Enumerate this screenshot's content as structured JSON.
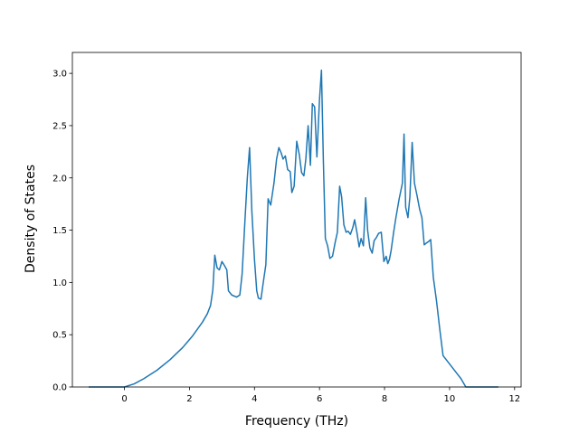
{
  "chart_data": {
    "type": "line",
    "title": "",
    "xlabel": "Frequency (THz)",
    "ylabel": "Density of States",
    "xlim": [
      -1.6,
      12.2
    ],
    "ylim": [
      0.0,
      3.2
    ],
    "xticks": [
      0,
      2,
      4,
      6,
      8,
      10,
      12
    ],
    "xtick_labels": [
      "0",
      "2",
      "4",
      "6",
      "8",
      "10",
      "12"
    ],
    "yticks": [
      0.0,
      0.5,
      1.0,
      1.5,
      2.0,
      2.5,
      3.0
    ],
    "ytick_labels": [
      "0.0",
      "0.5",
      "1.0",
      "1.5",
      "2.0",
      "2.5",
      "3.0"
    ],
    "grid": false,
    "line_color": "#1f77b4",
    "series": [
      {
        "x": [
          -1.1,
          -0.5,
          0.0,
          0.3,
          0.6,
          1.0,
          1.4,
          1.8,
          2.1,
          2.4,
          2.55,
          2.65,
          2.72,
          2.78,
          2.85,
          2.92,
          3.0,
          3.08,
          3.15,
          3.2,
          3.3,
          3.45,
          3.55,
          3.62,
          3.7,
          3.78,
          3.85,
          3.92,
          4.0,
          4.07,
          4.12,
          4.2,
          4.28,
          4.35,
          4.42,
          4.5,
          4.6,
          4.68,
          4.75,
          4.82,
          4.88,
          4.95,
          5.02,
          5.1,
          5.15,
          5.22,
          5.3,
          5.38,
          5.45,
          5.52,
          5.58,
          5.65,
          5.72,
          5.78,
          5.85,
          5.92,
          6.0,
          6.06,
          6.12,
          6.18,
          6.25,
          6.32,
          6.4,
          6.48,
          6.55,
          6.62,
          6.68,
          6.75,
          6.82,
          6.88,
          6.95,
          7.02,
          7.08,
          7.15,
          7.22,
          7.28,
          7.35,
          7.42,
          7.48,
          7.55,
          7.62,
          7.68,
          7.75,
          7.82,
          7.9,
          7.98,
          8.05,
          8.1,
          8.15,
          8.2,
          8.28,
          8.35,
          8.45,
          8.55,
          8.6,
          8.65,
          8.72,
          8.78,
          8.85,
          8.92,
          9.0,
          9.08,
          9.15,
          9.22,
          9.3,
          9.35,
          9.42,
          9.5,
          9.6,
          9.7,
          9.8,
          10.0,
          10.2,
          10.35,
          10.5,
          10.6,
          11.5
        ],
        "y": [
          0.0,
          0.0,
          0.0,
          0.03,
          0.08,
          0.16,
          0.26,
          0.38,
          0.49,
          0.62,
          0.7,
          0.78,
          0.93,
          1.26,
          1.14,
          1.12,
          1.2,
          1.16,
          1.12,
          0.92,
          0.88,
          0.86,
          0.88,
          1.08,
          1.55,
          2.0,
          2.29,
          1.68,
          1.22,
          0.92,
          0.85,
          0.84,
          1.02,
          1.17,
          1.8,
          1.74,
          1.95,
          2.18,
          2.29,
          2.24,
          2.18,
          2.21,
          2.08,
          2.06,
          1.86,
          1.92,
          2.35,
          2.22,
          2.05,
          2.02,
          2.18,
          2.5,
          2.12,
          2.71,
          2.68,
          2.2,
          2.75,
          3.03,
          2.15,
          1.42,
          1.35,
          1.23,
          1.25,
          1.38,
          1.48,
          1.92,
          1.82,
          1.55,
          1.48,
          1.49,
          1.46,
          1.52,
          1.6,
          1.48,
          1.34,
          1.42,
          1.35,
          1.81,
          1.5,
          1.33,
          1.28,
          1.4,
          1.43,
          1.47,
          1.48,
          1.2,
          1.25,
          1.18,
          1.22,
          1.3,
          1.48,
          1.62,
          1.8,
          1.95,
          2.42,
          1.72,
          1.62,
          1.82,
          2.34,
          1.95,
          1.83,
          1.7,
          1.62,
          1.36,
          1.38,
          1.39,
          1.41,
          1.05,
          0.82,
          0.55,
          0.3,
          0.22,
          0.14,
          0.08,
          0.0,
          0.0,
          0.0
        ]
      }
    ]
  }
}
